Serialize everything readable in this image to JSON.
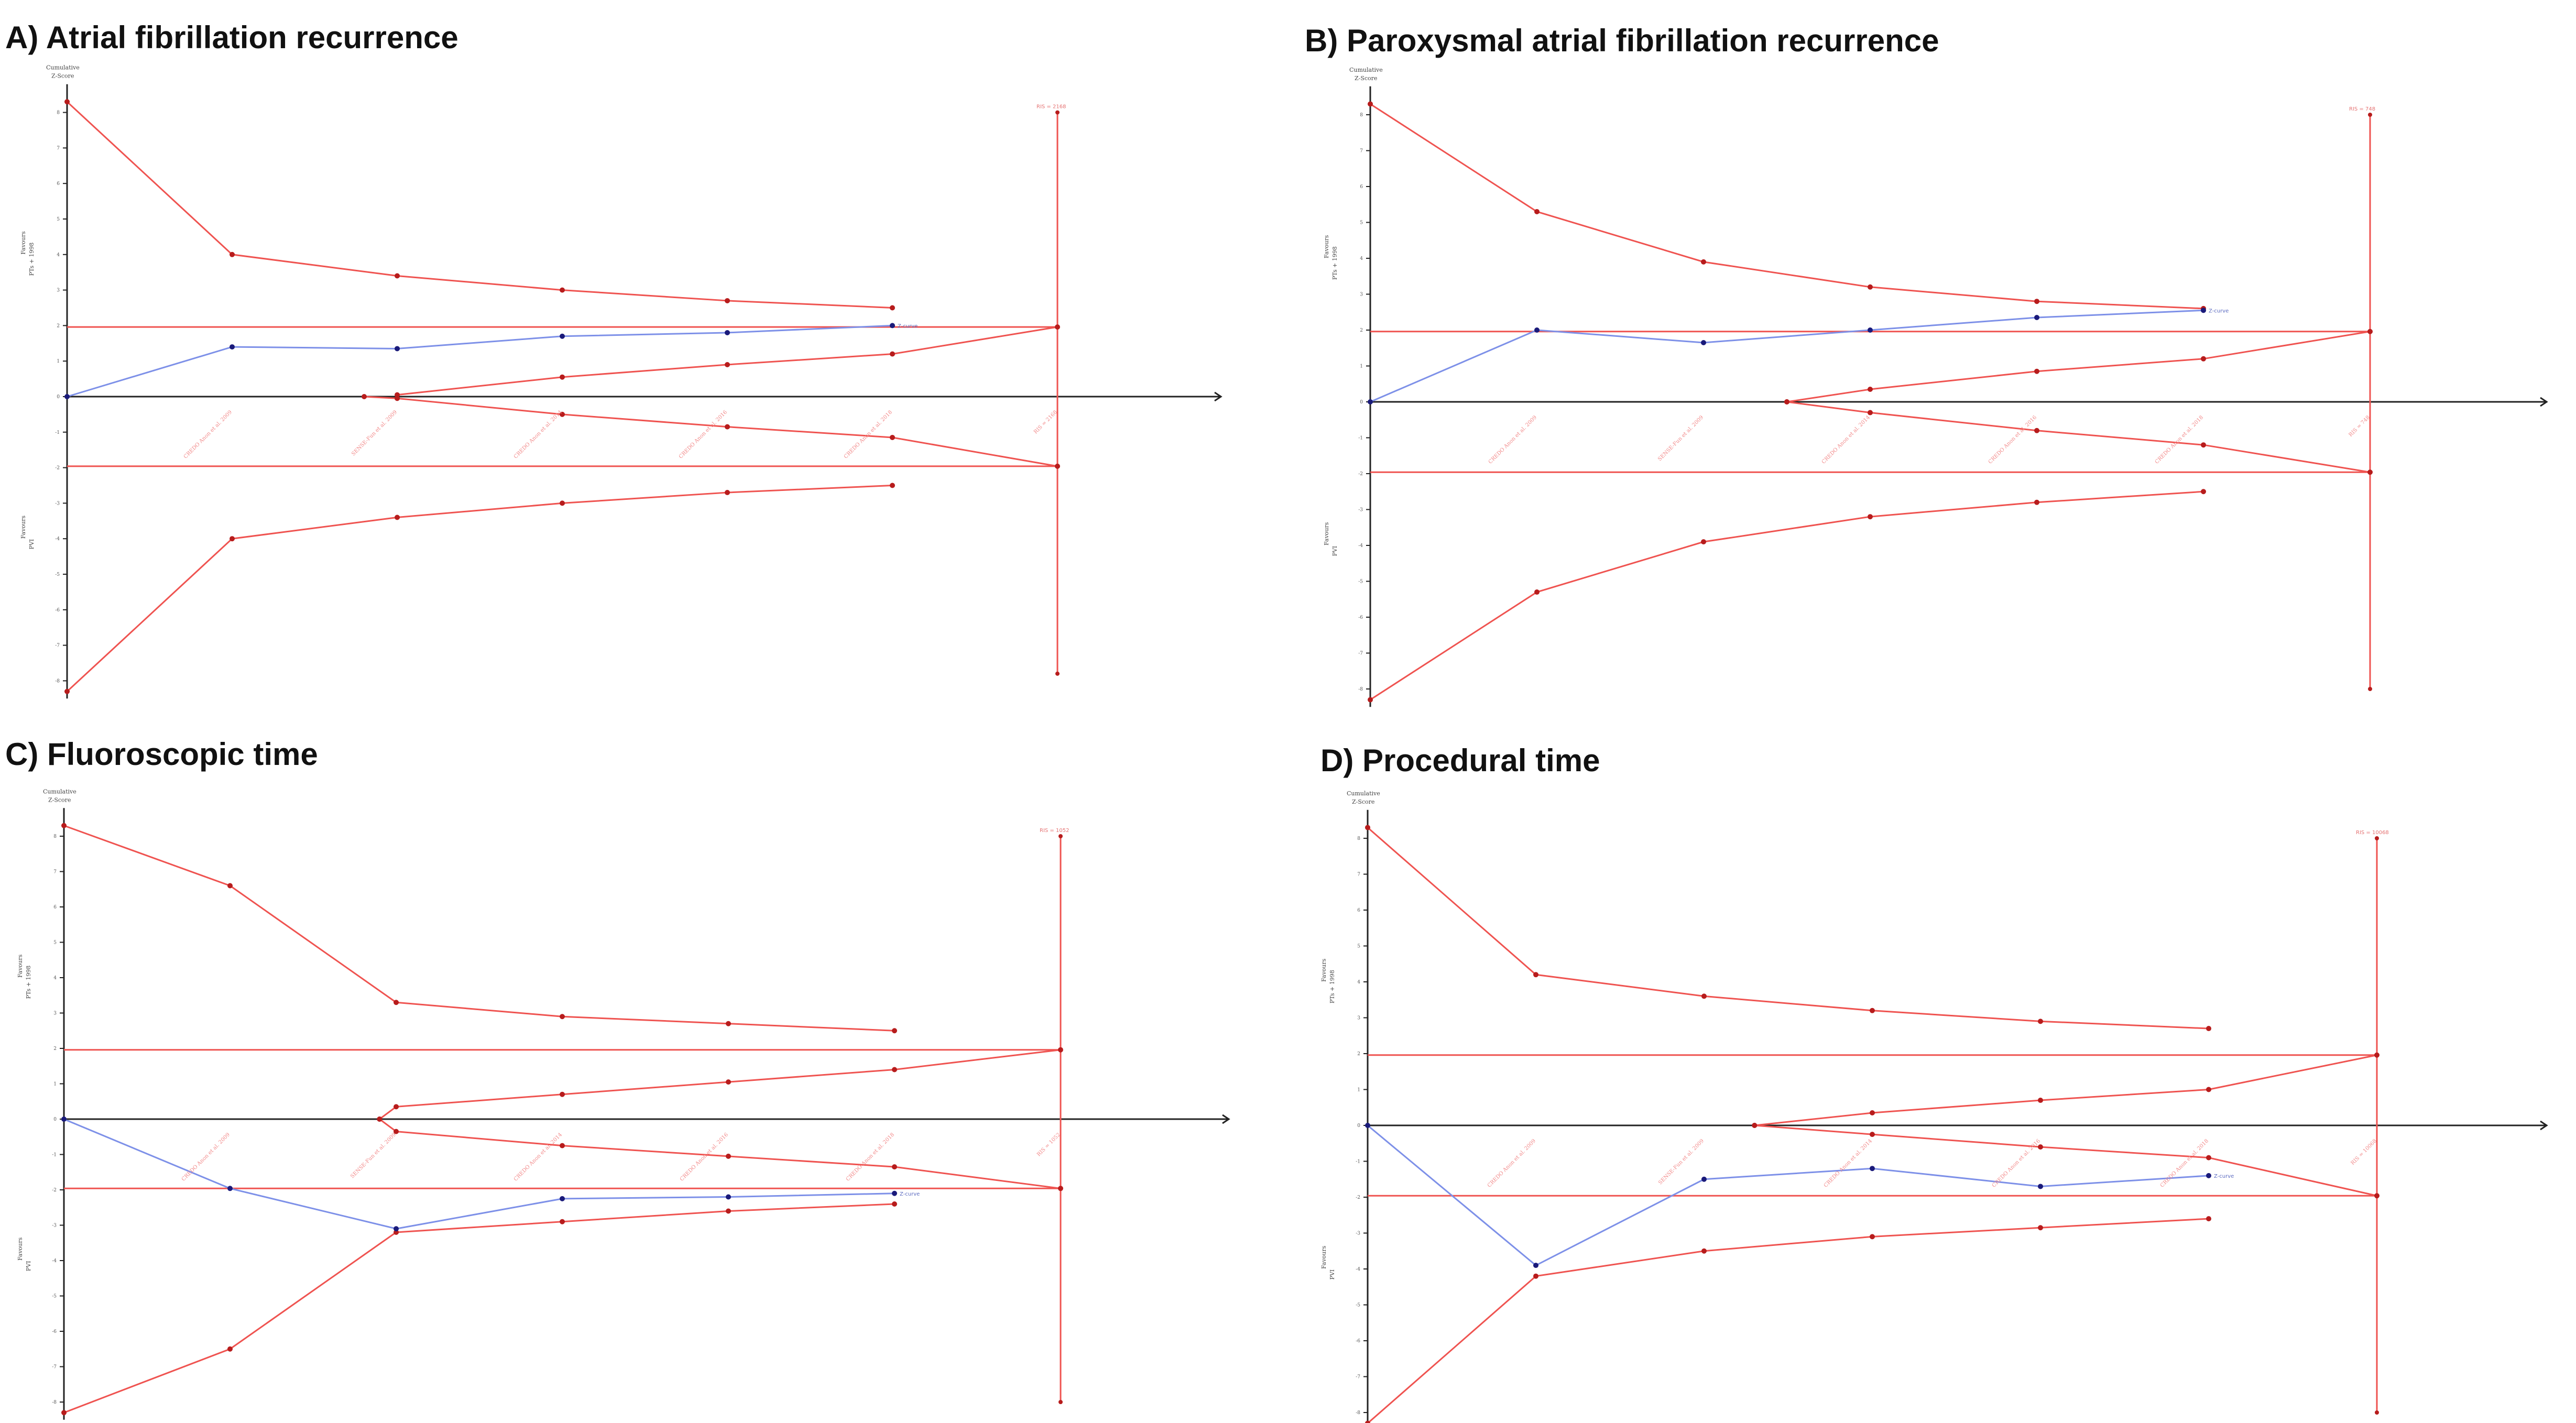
{
  "axis_text": {
    "cumulative": "Cumulative",
    "z_score": "Z-Score",
    "upper_label": "Favours",
    "upper_sub": "PTs + 1998",
    "lower_label": "Favours",
    "lower_sub": "PVI"
  },
  "colors": {
    "boundary": "#ef5350",
    "z_curve": "#7d90e8",
    "points": "#1a1a7a",
    "axis": "#222222"
  },
  "chart_data": [
    {
      "id": "A",
      "type": "line",
      "title": "A) Atrial fibrillation recurrence",
      "ylim": [
        -8.5,
        8.5
      ],
      "yticks": [
        -8,
        -7,
        -6,
        -5,
        -4,
        -3,
        -2,
        -1,
        0,
        1,
        2,
        3,
        4,
        5,
        6,
        7,
        8
      ],
      "trials": [
        "CREDO Anon et al. 2009",
        "SENSE-Fun et al. 2009",
        "CREDO Anon et al. 2014",
        "CREDO Anon et al. 2016",
        "CREDO Anon et al. 2018"
      ],
      "ris_label": "RIS = 2168",
      "z_label": "Z-curve",
      "x_ris": 6,
      "z_curve": [
        [
          0,
          0
        ],
        [
          1,
          1.4
        ],
        [
          2,
          1.35
        ],
        [
          3,
          1.7
        ],
        [
          4,
          1.8
        ],
        [
          5,
          2.0
        ]
      ],
      "upper_boundary": [
        [
          0,
          8.3
        ],
        [
          1,
          4.0
        ],
        [
          2,
          3.4
        ],
        [
          3,
          3.0
        ],
        [
          4,
          2.7
        ],
        [
          5,
          2.5
        ]
      ],
      "lower_boundary": [
        [
          0,
          -8.3
        ],
        [
          1,
          -4.0
        ],
        [
          2,
          -3.4
        ],
        [
          3,
          -3.0
        ],
        [
          4,
          -2.7
        ],
        [
          5,
          -2.5
        ]
      ],
      "futility_upper": [
        [
          2,
          0.05
        ],
        [
          3,
          0.55
        ],
        [
          4,
          0.9
        ],
        [
          5,
          1.2
        ],
        [
          6,
          1.96
        ]
      ],
      "futility_lower": [
        [
          1.8,
          0.0
        ],
        [
          2,
          -0.05
        ],
        [
          3,
          -0.5
        ],
        [
          4,
          -0.85
        ],
        [
          5,
          -1.15
        ],
        [
          6,
          -1.96
        ]
      ],
      "conventional": [
        1.96,
        -1.96
      ],
      "ris_line": [
        8.0,
        -7.8
      ]
    },
    {
      "id": "B",
      "type": "line",
      "title": "B) Paroxysmal atrial fibrillation recurrence",
      "ylim": [
        -8.5,
        8.5
      ],
      "yticks": [
        -8,
        -7,
        -6,
        -5,
        -4,
        -3,
        -2,
        -1,
        0,
        1,
        2,
        3,
        4,
        5,
        6,
        7,
        8
      ],
      "trials": [
        "CREDO Anon et al. 2009",
        "SENSE-Fun et al. 2009",
        "CREDO Anon et al. 2014",
        "CREDO Anon et al. 2016",
        "CREDO Anon et al. 2018"
      ],
      "ris_label": "RIS = 748",
      "z_label": "Z-curve",
      "x_ris": 6,
      "z_curve": [
        [
          0,
          0
        ],
        [
          1,
          2.0
        ],
        [
          2,
          1.65
        ],
        [
          3,
          2.0
        ],
        [
          4,
          2.35
        ],
        [
          5,
          2.55
        ]
      ],
      "upper_boundary": [
        [
          0,
          8.3
        ],
        [
          1,
          5.3
        ],
        [
          2,
          3.9
        ],
        [
          3,
          3.2
        ],
        [
          4,
          2.8
        ],
        [
          5,
          2.6
        ]
      ],
      "lower_boundary": [
        [
          0,
          -8.3
        ],
        [
          1,
          -5.3
        ],
        [
          2,
          -3.9
        ],
        [
          3,
          -3.2
        ],
        [
          4,
          -2.8
        ],
        [
          5,
          -2.5
        ]
      ],
      "futility_upper": [
        [
          2.5,
          0.0
        ],
        [
          3,
          0.35
        ],
        [
          4,
          0.85
        ],
        [
          5,
          1.2
        ],
        [
          6,
          1.96
        ]
      ],
      "futility_lower": [
        [
          2.5,
          0.0
        ],
        [
          3,
          -0.3
        ],
        [
          4,
          -0.8
        ],
        [
          5,
          -1.2
        ],
        [
          6,
          -1.96
        ]
      ],
      "conventional": [
        1.96,
        -1.96
      ],
      "ris_line": [
        8.0,
        -8.0
      ]
    },
    {
      "id": "C",
      "type": "line",
      "title": "C) Fluoroscopic time",
      "ylim": [
        -8.5,
        8.5
      ],
      "yticks": [
        -8,
        -7,
        -6,
        -5,
        -4,
        -3,
        -2,
        -1,
        0,
        1,
        2,
        3,
        4,
        5,
        6,
        7,
        8
      ],
      "trials": [
        "CREDO Anon et al. 2009",
        "SENSE-Fun et al. 2009",
        "CREDO Anon et al. 2014",
        "CREDO Anon et al. 2016",
        "CREDO Anon et al. 2018"
      ],
      "ris_label": "RIS = 1052",
      "z_label": "Z-curve",
      "x_ris": 6,
      "z_curve": [
        [
          0,
          0
        ],
        [
          1,
          -1.96
        ],
        [
          2,
          -3.1
        ],
        [
          3,
          -2.25
        ],
        [
          4,
          -2.2
        ],
        [
          5,
          -2.1
        ]
      ],
      "upper_boundary": [
        [
          0,
          8.3
        ],
        [
          1,
          6.6
        ],
        [
          2,
          3.3
        ],
        [
          3,
          2.9
        ],
        [
          4,
          2.7
        ],
        [
          5,
          2.5
        ]
      ],
      "lower_boundary": [
        [
          0,
          -8.3
        ],
        [
          1,
          -6.5
        ],
        [
          2,
          -3.2
        ],
        [
          3,
          -2.9
        ],
        [
          4,
          -2.6
        ],
        [
          5,
          -2.4
        ]
      ],
      "futility_upper": [
        [
          1.9,
          0.0
        ],
        [
          2,
          0.35
        ],
        [
          3,
          0.7
        ],
        [
          4,
          1.05
        ],
        [
          5,
          1.4
        ],
        [
          6,
          1.96
        ]
      ],
      "futility_lower": [
        [
          1.9,
          0.0
        ],
        [
          2,
          -0.35
        ],
        [
          3,
          -0.75
        ],
        [
          4,
          -1.05
        ],
        [
          5,
          -1.35
        ],
        [
          6,
          -1.96
        ]
      ],
      "conventional": [
        1.96,
        -1.96
      ],
      "ris_line": [
        8.0,
        -8.0
      ]
    },
    {
      "id": "D",
      "type": "line",
      "title": "D) Procedural time",
      "ylim": [
        -8.5,
        8.5
      ],
      "yticks": [
        -8,
        -7,
        -6,
        -5,
        -4,
        -3,
        -2,
        -1,
        0,
        1,
        2,
        3,
        4,
        5,
        6,
        7,
        8
      ],
      "trials": [
        "CREDO Anon et al. 2009",
        "SENSE-Fun et al. 2009",
        "CREDO Anon et al. 2014",
        "CREDO Anon et al. 2016",
        "CREDO Anon et al. 2018"
      ],
      "ris_label": "RIS = 10068",
      "z_label": "Z-curve",
      "x_ris": 6,
      "z_curve": [
        [
          0,
          0
        ],
        [
          1,
          -3.9
        ],
        [
          2,
          -1.5
        ],
        [
          3,
          -1.2
        ],
        [
          4,
          -1.7
        ],
        [
          5,
          -1.4
        ]
      ],
      "upper_boundary": [
        [
          0,
          8.3
        ],
        [
          1,
          4.2
        ],
        [
          2,
          3.6
        ],
        [
          3,
          3.2
        ],
        [
          4,
          2.9
        ],
        [
          5,
          2.7
        ]
      ],
      "lower_boundary": [
        [
          0,
          -8.3
        ],
        [
          1,
          -4.2
        ],
        [
          2,
          -3.5
        ],
        [
          3,
          -3.1
        ],
        [
          4,
          -2.85
        ],
        [
          5,
          -2.6
        ]
      ],
      "futility_upper": [
        [
          2.3,
          0.0
        ],
        [
          3,
          0.35
        ],
        [
          4,
          0.7
        ],
        [
          5,
          1.0
        ],
        [
          6,
          1.96
        ]
      ],
      "futility_lower": [
        [
          2.3,
          0.0
        ],
        [
          3,
          -0.25
        ],
        [
          4,
          -0.6
        ],
        [
          5,
          -0.9
        ],
        [
          6,
          -1.96
        ]
      ],
      "conventional": [
        1.96,
        -1.96
      ],
      "ris_line": [
        8.0,
        -8.0
      ]
    }
  ]
}
